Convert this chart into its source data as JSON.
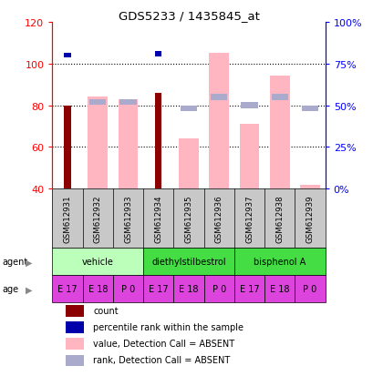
{
  "title": "GDS5233 / 1435845_at",
  "samples": [
    "GSM612931",
    "GSM612932",
    "GSM612933",
    "GSM612934",
    "GSM612935",
    "GSM612936",
    "GSM612937",
    "GSM612938",
    "GSM612939"
  ],
  "count_values": [
    80,
    null,
    null,
    86,
    null,
    null,
    null,
    null,
    null
  ],
  "rank_values": [
    80,
    null,
    null,
    81,
    null,
    null,
    null,
    null,
    null
  ],
  "pink_values": [
    null,
    84,
    83,
    null,
    64,
    105,
    71,
    94,
    42
  ],
  "blue_pct_values": [
    null,
    52,
    52,
    null,
    48,
    55,
    50,
    55,
    48
  ],
  "ylim_left": [
    40,
    120
  ],
  "ylim_right": [
    0,
    100
  ],
  "yticks_left": [
    40,
    60,
    80,
    100,
    120
  ],
  "ytick_labels_left": [
    "40",
    "60",
    "80",
    "100",
    "120"
  ],
  "yticks_right_pct": [
    0,
    25,
    50,
    75,
    100
  ],
  "ytick_labels_right": [
    "0%",
    "25%",
    "50%",
    "75%",
    "100%"
  ],
  "agent_groups": [
    {
      "label": "vehicle",
      "start": 0,
      "end": 2,
      "color": "#BBFFBB"
    },
    {
      "label": "diethylstilbestrol",
      "start": 3,
      "end": 5,
      "color": "#44DD44"
    },
    {
      "label": "bisphenol A",
      "start": 6,
      "end": 8,
      "color": "#44DD44"
    }
  ],
  "age_labels": [
    "E 17",
    "E 18",
    "P 0",
    "E 17",
    "E 18",
    "P 0",
    "E 17",
    "E 18",
    "P 0"
  ],
  "age_color": "#DD44DD",
  "sample_bg": "#C8C8C8",
  "count_color": "#8B0000",
  "rank_color": "#0000AA",
  "pink_color": "#FFB6C1",
  "blue_color": "#AAAACC",
  "plot_bg": "#FFFFFF"
}
